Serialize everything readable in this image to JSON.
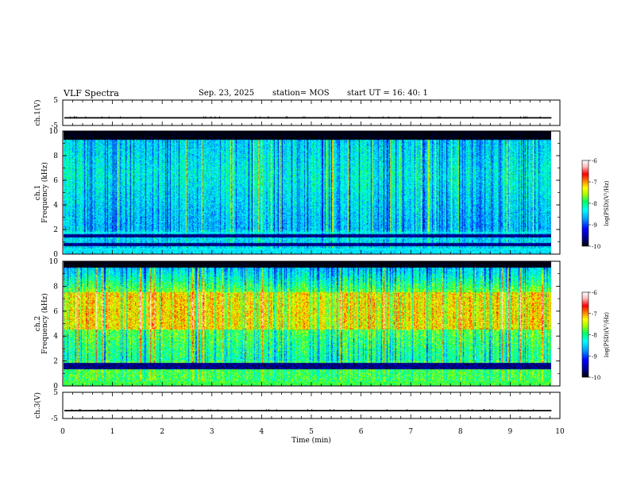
{
  "header": {
    "title": "VLF Spectra",
    "date": "Sep. 23, 2025",
    "station": "station= MOS",
    "start": "start  UT =  16: 40: 1"
  },
  "chart_data": [
    {
      "type": "line",
      "panel": "ch1-voltage",
      "ylabel": "ch.1(V)",
      "ylim": [
        -5,
        5
      ],
      "yticks": [
        "5",
        "-5"
      ],
      "series": [
        {
          "values": [
            -2,
            -2
          ]
        }
      ],
      "x_range": [
        0,
        9.83
      ]
    },
    {
      "type": "heatmap",
      "panel": "ch1-spectrogram",
      "ylabel_line1": "ch.1",
      "ylabel_line2": "Frequency (kHz)",
      "ylim": [
        0,
        10
      ],
      "yticks": [
        "0",
        "2",
        "4",
        "6",
        "8",
        "10"
      ],
      "colorbar": {
        "label": "log(PSD)(V²/Hz)",
        "range": [
          -10,
          -6
        ],
        "ticks": [
          "-6",
          "-7",
          "-8",
          "-9",
          "-10"
        ]
      },
      "features": {
        "black_band_khz": [
          9.3,
          10.0
        ],
        "dark_bands_khz": [
          [
            1.3,
            1.6
          ],
          [
            0.6,
            0.9
          ]
        ],
        "horizontal_lines_khz": [
          1.75,
          0.4
        ],
        "dominant_level": -8.5
      }
    },
    {
      "type": "heatmap",
      "panel": "ch2-spectrogram",
      "ylabel_line1": "ch.2",
      "ylabel_line2": "Frequency (kHz)",
      "ylim": [
        0,
        10
      ],
      "yticks": [
        "0",
        "2",
        "4",
        "6",
        "8",
        "10"
      ],
      "colorbar": {
        "label": "log(PSD)(V²/Hz)",
        "range": [
          -10,
          -6
        ],
        "ticks": [
          "-6",
          "-7",
          "-8",
          "-9",
          "-10"
        ]
      },
      "features": {
        "black_band_khz": [
          9.5,
          10.0
        ],
        "hot_band_khz": [
          4.5,
          7.5
        ],
        "dark_bands_khz": [
          [
            1.3,
            1.8
          ]
        ],
        "dominant_level": -7.8
      }
    },
    {
      "type": "line",
      "panel": "ch3-voltage",
      "ylabel": "ch.3(V)",
      "ylim": [
        -5,
        5
      ],
      "yticks": [
        "5",
        "-5"
      ],
      "series": [
        {
          "values": [
            -2,
            -2
          ]
        }
      ],
      "x_range": [
        0,
        9.83
      ]
    }
  ],
  "xaxis": {
    "label": "Time (min)",
    "ticks": [
      "0",
      "1",
      "2",
      "3",
      "4",
      "5",
      "6",
      "7",
      "8",
      "9",
      "10"
    ],
    "range": [
      0,
      10
    ]
  },
  "colors": {
    "colormap": [
      "#000080",
      "#0000ff",
      "#00a0ff",
      "#00ffff",
      "#00ff60",
      "#a0ff00",
      "#ffff00",
      "#ff8000",
      "#ff0000",
      "#ffd0d0",
      "#ffffff"
    ]
  }
}
